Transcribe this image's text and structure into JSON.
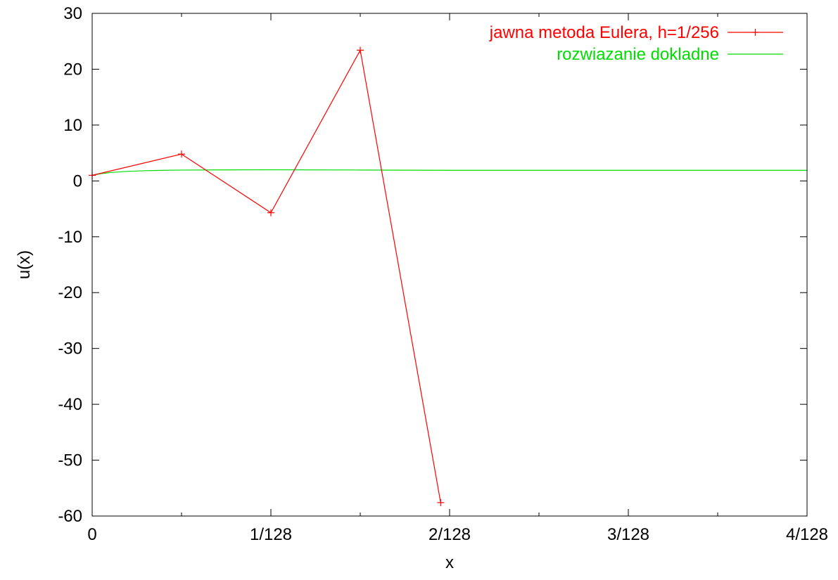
{
  "chart_data": {
    "type": "line",
    "title": "",
    "xlabel": "x",
    "ylabel": "u(x)",
    "xlim": [
      0,
      4
    ],
    "ylim": [
      -60,
      30
    ],
    "x_unit_note": "",
    "x_ticks": [
      {
        "value": 0,
        "label": "0"
      },
      {
        "value": 1,
        "label": "1/128"
      },
      {
        "value": 2,
        "label": "2/128"
      },
      {
        "value": 3,
        "label": "3/128"
      },
      {
        "value": 4,
        "label": "4/128"
      }
    ],
    "x_minor_ticks": [
      0.5,
      1.5,
      2.5,
      3.5
    ],
    "y_ticks": [
      30,
      20,
      10,
      0,
      -10,
      -20,
      -30,
      -40,
      -50,
      -60
    ],
    "grid": false,
    "legend_position": "top-right",
    "series": [
      {
        "name": "jawna metoda Eulera, h=1/256",
        "color": "#ff0000",
        "marker": "plus",
        "x": [
          0,
          0.5,
          1.0,
          1.5,
          1.95
        ],
        "y": [
          1,
          4.8,
          -5.7,
          23.4,
          -57.6
        ]
      },
      {
        "name": "rozwiazanie dokladne",
        "color": "#00dd00",
        "marker": "none",
        "x": [
          0,
          0.05,
          0.1,
          0.2,
          0.3,
          0.4,
          0.5,
          0.75,
          1.0,
          1.5,
          2.0,
          2.5,
          3.0,
          3.5,
          4.0
        ],
        "y": [
          1,
          1.3,
          1.5,
          1.72,
          1.83,
          1.9,
          1.94,
          1.98,
          1.99,
          1.95,
          1.9,
          1.9,
          1.9,
          1.9,
          1.9
        ]
      }
    ]
  }
}
